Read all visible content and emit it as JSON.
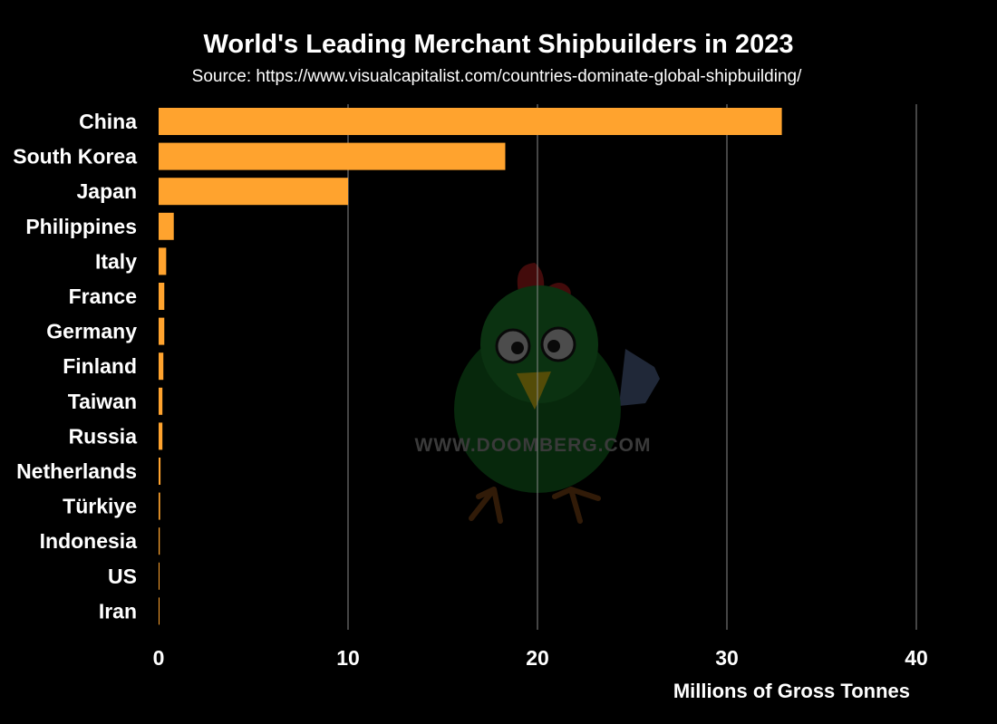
{
  "chart_data": {
    "type": "bar",
    "orientation": "horizontal",
    "title": "World's Leading Merchant Shipbuilders in 2023",
    "subtitle": "Source: https://www.visualcapitalist.com/countries-dominate-global-shipbuilding/",
    "xlabel": "Millions of Gross Tonnes",
    "ylabel": "",
    "xlim": [
      0,
      40
    ],
    "xticks": [
      0,
      10,
      20,
      30,
      40
    ],
    "grid": "vertical",
    "categories": [
      "China",
      "South Korea",
      "Japan",
      "Philippines",
      "Italy",
      "France",
      "Germany",
      "Finland",
      "Taiwan",
      "Russia",
      "Netherlands",
      "Türkiye",
      "Indonesia",
      "US",
      "Iran"
    ],
    "values": [
      32.9,
      18.3,
      10.0,
      0.8,
      0.4,
      0.3,
      0.3,
      0.25,
      0.2,
      0.2,
      0.1,
      0.08,
      0.06,
      0.04,
      0.03
    ],
    "colors": {
      "background": "#000000",
      "bar": "#FFA32E",
      "text": "#FFFFFF",
      "grid": "#8a8a8a"
    }
  },
  "watermark": {
    "text": "WWW.DOOMBERG.COM",
    "icon": "chicken-mascot-icon"
  }
}
